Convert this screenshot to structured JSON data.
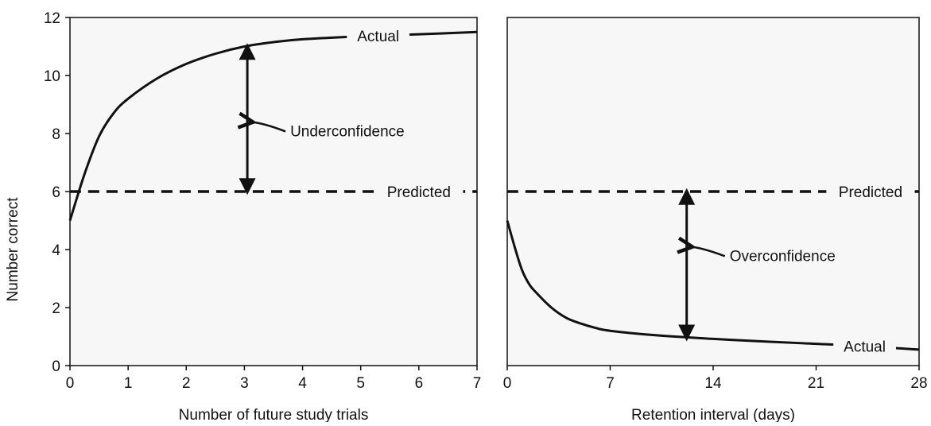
{
  "y_axis_title": "Number correct",
  "colors": {
    "panel_bg": "#f7f7f7",
    "line": "#111111"
  },
  "chart_data": [
    {
      "type": "line",
      "xlabel": "Number of future study trials",
      "ylabel": "Number correct",
      "xlim": [
        0,
        7
      ],
      "ylim": [
        0,
        12
      ],
      "xticks": [
        0,
        1,
        2,
        3,
        4,
        5,
        6,
        7
      ],
      "yticks": [
        0,
        2,
        4,
        6,
        8,
        10,
        12
      ],
      "grid": false,
      "series": [
        {
          "name": "Actual",
          "style": "solid",
          "x": [
            0,
            0.25,
            0.5,
            0.75,
            1,
            1.5,
            2,
            2.5,
            3,
            3.5,
            4,
            5,
            6,
            7
          ],
          "y": [
            5,
            6.6,
            7.9,
            8.7,
            9.2,
            9.9,
            10.4,
            10.75,
            11.0,
            11.15,
            11.25,
            11.35,
            11.42,
            11.5
          ]
        },
        {
          "name": "Predicted",
          "style": "dashed",
          "x": [
            0,
            7
          ],
          "y": [
            6,
            6
          ]
        }
      ],
      "annotations": [
        {
          "text": "Underconfidence",
          "arrow_x": 3.05,
          "arrow_from": 6,
          "arrow_to": 11.0,
          "pointer_y": 8.4
        }
      ]
    },
    {
      "type": "line",
      "xlabel": "Retention interval (days)",
      "ylabel": "",
      "xlim": [
        0,
        28
      ],
      "ylim": [
        0,
        12
      ],
      "xticks": [
        0,
        7,
        14,
        21,
        28
      ],
      "yticks": [],
      "grid": false,
      "series": [
        {
          "name": "Actual",
          "style": "solid",
          "x": [
            0,
            0.5,
            1,
            1.5,
            2,
            3,
            4,
            5,
            6,
            7,
            10,
            14,
            18,
            21,
            24,
            28
          ],
          "y": [
            5,
            4.1,
            3.3,
            2.8,
            2.5,
            2.0,
            1.65,
            1.45,
            1.3,
            1.2,
            1.05,
            0.92,
            0.82,
            0.75,
            0.68,
            0.55
          ]
        },
        {
          "name": "Predicted",
          "style": "dashed",
          "x": [
            0,
            28
          ],
          "y": [
            6,
            6
          ]
        }
      ],
      "annotations": [
        {
          "text": "Overconfidence",
          "arrow_x": 12.2,
          "arrow_from": 6,
          "arrow_to": 0.95,
          "pointer_y": 4.1
        }
      ]
    }
  ]
}
